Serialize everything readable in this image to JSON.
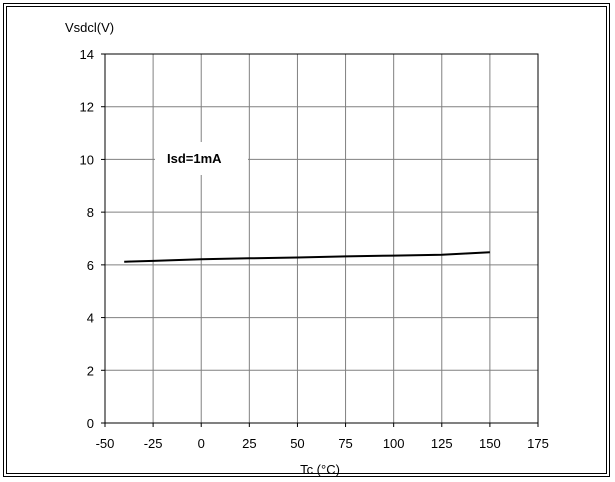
{
  "chart_data": {
    "type": "line",
    "ylabel": "Vsdcl(V)",
    "xlabel": "Tc (°C)",
    "annotation": "Isd=1mA",
    "xlim": [
      -50,
      175
    ],
    "ylim": [
      0,
      14
    ],
    "xticks": [
      -50,
      -25,
      0,
      25,
      50,
      75,
      100,
      125,
      150,
      175
    ],
    "yticks": [
      0,
      2,
      4,
      6,
      8,
      10,
      12,
      14
    ],
    "grid": true,
    "series": [
      {
        "x": [
          -40,
          -25,
          0,
          25,
          50,
          75,
          100,
          125,
          150
        ],
        "y": [
          6.12,
          6.15,
          6.21,
          6.25,
          6.28,
          6.32,
          6.35,
          6.38,
          6.48
        ]
      }
    ]
  }
}
